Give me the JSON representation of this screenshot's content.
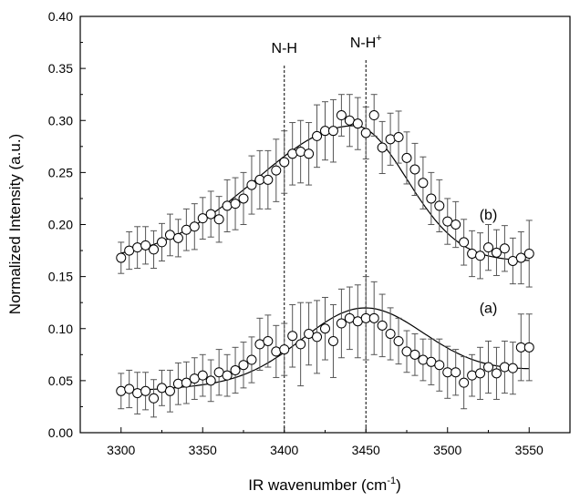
{
  "chart_data": {
    "type": "scatter",
    "xlabel": "IR wavenumber (cm",
    "xlabel_sup": "-1",
    "xlabel_tail": ")",
    "ylabel": "Normalized Intensity (a.u.)",
    "xlim": [
      3275,
      3575
    ],
    "ylim": [
      0.0,
      0.4
    ],
    "x_ticks": [
      3300,
      3350,
      3400,
      3450,
      3500,
      3550
    ],
    "y_ticks": [
      0.0,
      0.05,
      0.1,
      0.15,
      0.2,
      0.25,
      0.3,
      0.35,
      0.4
    ],
    "x_tick_labels": [
      "3300",
      "3350",
      "3400",
      "3450",
      "3500",
      "3550"
    ],
    "y_tick_labels": [
      "0.00",
      "0.05",
      "0.10",
      "0.15",
      "0.20",
      "0.25",
      "0.30",
      "0.35",
      "0.40"
    ],
    "grid": false,
    "marker": "open-circle",
    "error_bars": true,
    "fit_curve": true,
    "annotations": [
      {
        "text": "N-H",
        "sup": "",
        "x": 3400,
        "line": "dashed"
      },
      {
        "text": "N-H",
        "sup": "+",
        "x": 3450,
        "line": "dashed"
      }
    ],
    "series": [
      {
        "label": "(a)",
        "x": [
          3300,
          3305,
          3310,
          3315,
          3320,
          3325,
          3330,
          3335,
          3340,
          3345,
          3350,
          3355,
          3360,
          3365,
          3370,
          3375,
          3380,
          3385,
          3390,
          3395,
          3400,
          3405,
          3410,
          3415,
          3420,
          3425,
          3430,
          3435,
          3440,
          3445,
          3450,
          3455,
          3460,
          3465,
          3470,
          3475,
          3480,
          3485,
          3490,
          3495,
          3500,
          3505,
          3510,
          3515,
          3520,
          3525,
          3530,
          3535,
          3540,
          3545,
          3550
        ],
        "y": [
          0.04,
          0.042,
          0.038,
          0.04,
          0.033,
          0.043,
          0.04,
          0.047,
          0.048,
          0.052,
          0.055,
          0.05,
          0.058,
          0.055,
          0.06,
          0.065,
          0.07,
          0.085,
          0.088,
          0.078,
          0.08,
          0.093,
          0.085,
          0.095,
          0.092,
          0.1,
          0.088,
          0.105,
          0.11,
          0.107,
          0.11,
          0.11,
          0.103,
          0.095,
          0.088,
          0.078,
          0.075,
          0.07,
          0.068,
          0.065,
          0.058,
          0.058,
          0.048,
          0.055,
          0.057,
          0.063,
          0.057,
          0.063,
          0.062,
          0.082,
          0.082
        ],
        "error": [
          0.017,
          0.018,
          0.02,
          0.018,
          0.018,
          0.017,
          0.02,
          0.02,
          0.02,
          0.02,
          0.02,
          0.02,
          0.022,
          0.02,
          0.022,
          0.022,
          0.022,
          0.025,
          0.025,
          0.025,
          0.025,
          0.03,
          0.04,
          0.03,
          0.035,
          0.03,
          0.035,
          0.033,
          0.03,
          0.035,
          0.04,
          0.035,
          0.03,
          0.025,
          0.022,
          0.02,
          0.02,
          0.02,
          0.022,
          0.025,
          0.025,
          0.022,
          0.025,
          0.02,
          0.025,
          0.025,
          0.025,
          0.025,
          0.025,
          0.032,
          0.032
        ],
        "fit": {
          "base": 0.04,
          "amp": 0.068,
          "center": 3448,
          "sigma": 37,
          "drift": 8e-05
        }
      },
      {
        "label": "(b)",
        "x": [
          3300,
          3305,
          3310,
          3315,
          3320,
          3325,
          3330,
          3335,
          3340,
          3345,
          3350,
          3355,
          3360,
          3365,
          3370,
          3375,
          3380,
          3385,
          3390,
          3395,
          3400,
          3405,
          3410,
          3415,
          3420,
          3425,
          3430,
          3435,
          3440,
          3445,
          3450,
          3455,
          3460,
          3465,
          3470,
          3475,
          3480,
          3485,
          3490,
          3495,
          3500,
          3505,
          3510,
          3515,
          3520,
          3525,
          3530,
          3535,
          3540,
          3545,
          3550
        ],
        "y": [
          0.168,
          0.175,
          0.178,
          0.18,
          0.176,
          0.183,
          0.19,
          0.187,
          0.195,
          0.198,
          0.206,
          0.21,
          0.205,
          0.218,
          0.22,
          0.225,
          0.238,
          0.243,
          0.243,
          0.252,
          0.26,
          0.268,
          0.27,
          0.268,
          0.285,
          0.29,
          0.29,
          0.305,
          0.3,
          0.297,
          0.288,
          0.305,
          0.274,
          0.282,
          0.284,
          0.264,
          0.253,
          0.24,
          0.225,
          0.218,
          0.203,
          0.2,
          0.183,
          0.172,
          0.17,
          0.178,
          0.173,
          0.177,
          0.165,
          0.168,
          0.172
        ],
        "error": [
          0.015,
          0.018,
          0.02,
          0.018,
          0.018,
          0.018,
          0.02,
          0.018,
          0.02,
          0.022,
          0.02,
          0.022,
          0.022,
          0.025,
          0.025,
          0.025,
          0.028,
          0.028,
          0.028,
          0.03,
          0.03,
          0.03,
          0.03,
          0.03,
          0.03,
          0.028,
          0.03,
          0.02,
          0.025,
          0.025,
          0.025,
          0.02,
          0.025,
          0.025,
          0.025,
          0.025,
          0.025,
          0.025,
          0.025,
          0.025,
          0.022,
          0.022,
          0.022,
          0.022,
          0.022,
          0.022,
          0.022,
          0.022,
          0.022,
          0.025,
          0.032
        ],
        "fit": {
          "base": 0.165,
          "amp": 0.13,
          "center": 3443,
          "sigma_left": 60,
          "sigma_right": 32
        }
      }
    ]
  }
}
